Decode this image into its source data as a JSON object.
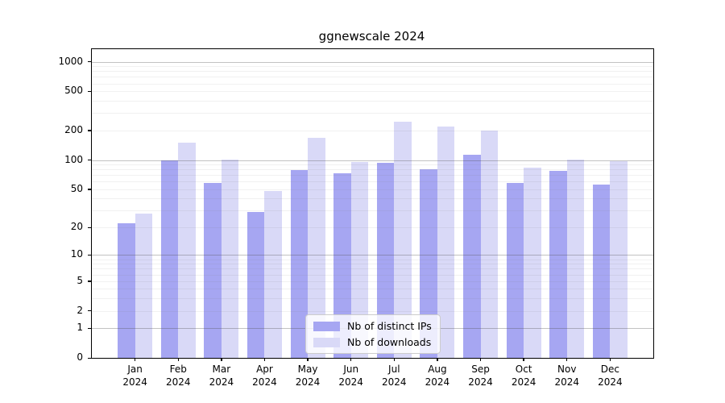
{
  "title": "ggnewscale 2024",
  "chart_data": {
    "type": "bar",
    "title": "ggnewscale 2024",
    "categories": [
      "Jan 2024",
      "Feb 2024",
      "Mar 2024",
      "Apr 2024",
      "May 2024",
      "Jun 2024",
      "Jul 2024",
      "Aug 2024",
      "Sep 2024",
      "Oct 2024",
      "Nov 2024",
      "Dec 2024"
    ],
    "series": [
      {
        "name": "Nb of distinct IPs",
        "color": "#a6a6f2",
        "values": [
          22,
          99,
          58,
          29,
          79,
          73,
          94,
          80,
          113,
          58,
          77,
          56
        ]
      },
      {
        "name": "Nb of downloads",
        "color": "#d9d9f7",
        "values": [
          28,
          150,
          101,
          48,
          168,
          95,
          245,
          218,
          198,
          84,
          101,
          98
        ]
      }
    ],
    "xlabel": "",
    "ylabel": "",
    "yscale": "log1p",
    "yticks": [
      0,
      1,
      2,
      5,
      10,
      20,
      50,
      100,
      200,
      500,
      1000
    ],
    "ylim": [
      0,
      1340
    ],
    "grid": "on",
    "legend_position": "lower center"
  }
}
